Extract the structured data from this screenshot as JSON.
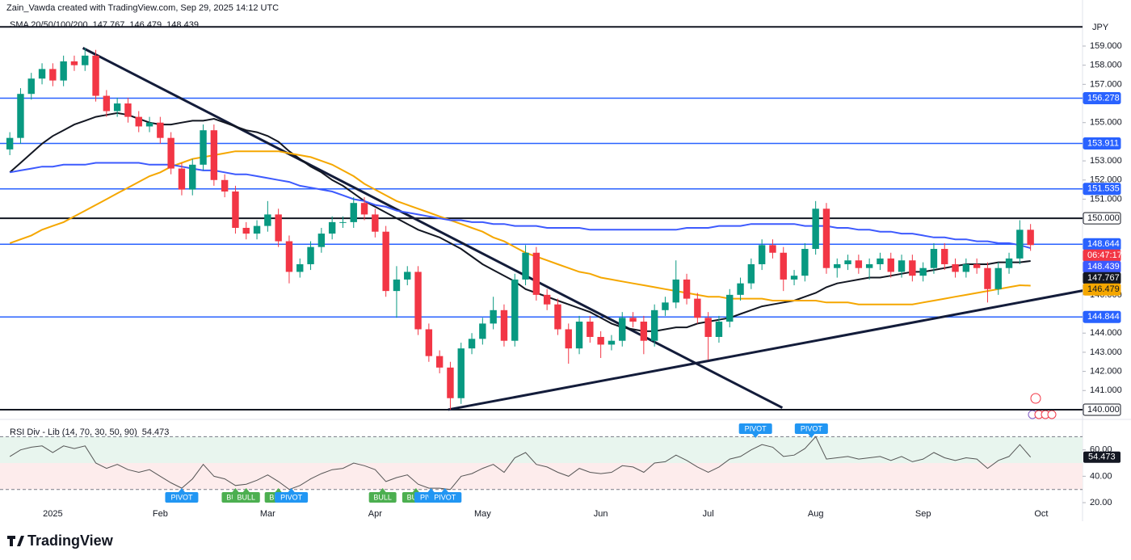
{
  "chart_data": {
    "type": "candlestick",
    "attribution": "Zain_Vawda created with TradingView.com, Sep 29, 2025 14:12 UTC",
    "sma_title": "SMA 20/50/100/200",
    "currency": "JPY",
    "countdown": "06:47:17",
    "brand": "TradingView",
    "up_color": "#089981",
    "down_color": "#f23645",
    "categories": [
      null,
      null,
      null,
      null,
      "2025",
      null,
      null,
      null,
      null,
      null,
      null,
      null,
      null,
      null,
      "Feb",
      null,
      null,
      null,
      null,
      null,
      null,
      null,
      null,
      null,
      "Mar",
      null,
      null,
      null,
      null,
      null,
      null,
      null,
      null,
      null,
      "Apr",
      null,
      null,
      null,
      null,
      null,
      null,
      null,
      null,
      null,
      "May",
      null,
      null,
      null,
      null,
      null,
      null,
      null,
      null,
      null,
      null,
      "Jun",
      null,
      null,
      null,
      null,
      null,
      null,
      null,
      null,
      null,
      "Jul",
      null,
      null,
      null,
      null,
      null,
      null,
      null,
      null,
      null,
      "Aug",
      null,
      null,
      null,
      null,
      null,
      null,
      null,
      null,
      null,
      "Sep",
      null,
      null,
      null,
      null,
      null,
      null,
      null,
      null,
      null,
      null,
      "Oct"
    ],
    "open": [
      153.6,
      154.2,
      156.5,
      157.3,
      157.8,
      157.2,
      158.2,
      158.0,
      158.5,
      156.4,
      155.6,
      156.0,
      155.3,
      154.8,
      155.0,
      154.2,
      152.6,
      151.5,
      152.8,
      154.6,
      152.0,
      151.4,
      149.5,
      149.2,
      149.6,
      150.2,
      148.8,
      147.2,
      147.6,
      148.5,
      149.2,
      149.8,
      149.8,
      150.8,
      150.2,
      149.3,
      146.2,
      146.8,
      147.2,
      144.2,
      142.8,
      142.2,
      140.6,
      143.2,
      143.7,
      144.5,
      145.2,
      143.6,
      146.8,
      148.2,
      146.0,
      145.5,
      144.2,
      143.2,
      144.6,
      143.8,
      143.4,
      143.6,
      144.8,
      144.6,
      143.6,
      145.2,
      145.6,
      146.8,
      145.8,
      144.8,
      143.8,
      144.6,
      146.0,
      146.6,
      147.6,
      148.6,
      148.2,
      146.8,
      147.0,
      148.4,
      150.5,
      147.4,
      147.6,
      147.8,
      147.4,
      147.6,
      147.9,
      147.2,
      147.8,
      147.0,
      147.4,
      148.4,
      147.6,
      147.2,
      147.6,
      147.4,
      146.3,
      147.4,
      147.9,
      149.4,
      null
    ],
    "high": [
      154.5,
      156.8,
      157.6,
      158.1,
      158.1,
      158.5,
      158.5,
      158.9,
      158.8,
      156.7,
      156.3,
      156.3,
      155.6,
      155.3,
      155.3,
      154.5,
      152.9,
      153.1,
      154.9,
      154.9,
      152.3,
      151.7,
      149.8,
      149.9,
      150.9,
      150.5,
      149.1,
      147.9,
      148.8,
      149.5,
      150.1,
      150.1,
      151.1,
      151.1,
      150.5,
      149.6,
      147.5,
      147.5,
      147.5,
      144.5,
      143.1,
      142.5,
      143.5,
      144.0,
      144.8,
      145.9,
      145.5,
      147.1,
      148.6,
      148.5,
      146.3,
      145.8,
      144.5,
      144.9,
      144.9,
      144.1,
      143.9,
      145.1,
      145.1,
      144.9,
      145.5,
      145.9,
      147.8,
      147.1,
      146.1,
      145.1,
      144.9,
      146.3,
      146.9,
      147.9,
      148.9,
      148.9,
      148.5,
      147.3,
      148.7,
      150.9,
      150.8,
      147.9,
      148.1,
      148.1,
      147.9,
      148.2,
      148.2,
      148.1,
      148.1,
      147.7,
      148.7,
      148.7,
      147.9,
      147.9,
      147.9,
      147.7,
      147.7,
      148.2,
      149.9,
      149.7,
      null
    ],
    "low": [
      153.3,
      153.9,
      156.2,
      157.0,
      156.9,
      156.9,
      157.7,
      157.7,
      156.1,
      155.3,
      155.3,
      155.0,
      154.5,
      154.5,
      153.9,
      152.3,
      151.2,
      151.2,
      152.5,
      151.7,
      151.1,
      149.2,
      148.9,
      148.9,
      149.3,
      148.5,
      146.6,
      146.9,
      147.3,
      148.2,
      148.9,
      149.5,
      149.5,
      149.9,
      149.0,
      145.9,
      144.8,
      146.5,
      143.9,
      142.5,
      141.9,
      140.0,
      140.3,
      142.9,
      143.4,
      144.2,
      143.3,
      143.3,
      146.5,
      145.7,
      145.2,
      143.9,
      142.4,
      142.9,
      143.5,
      142.7,
      143.1,
      143.3,
      144.3,
      142.9,
      143.3,
      144.9,
      145.3,
      145.5,
      144.5,
      142.6,
      143.5,
      144.3,
      145.7,
      146.3,
      147.3,
      147.9,
      146.2,
      146.5,
      146.7,
      148.1,
      147.1,
      146.9,
      147.3,
      147.1,
      146.8,
      147.3,
      146.9,
      146.9,
      146.7,
      146.7,
      147.1,
      147.3,
      146.9,
      146.9,
      147.1,
      145.6,
      146.0,
      147.1,
      147.6,
      148.3,
      null
    ],
    "close": [
      154.2,
      156.5,
      157.3,
      157.8,
      157.2,
      158.2,
      158.0,
      158.5,
      156.4,
      155.6,
      156.0,
      155.3,
      154.8,
      155.0,
      154.2,
      152.6,
      151.5,
      152.8,
      154.6,
      152.0,
      151.4,
      149.5,
      149.2,
      149.6,
      150.2,
      148.8,
      147.2,
      147.6,
      148.5,
      149.2,
      149.8,
      149.8,
      150.8,
      150.2,
      149.3,
      146.2,
      146.8,
      147.2,
      144.2,
      142.8,
      142.2,
      140.6,
      143.2,
      143.7,
      144.5,
      145.2,
      143.6,
      146.8,
      148.2,
      146.0,
      145.5,
      144.2,
      143.2,
      144.6,
      143.8,
      143.4,
      143.6,
      144.8,
      144.6,
      143.6,
      145.2,
      145.6,
      146.8,
      145.8,
      144.8,
      143.8,
      144.6,
      146.0,
      146.6,
      147.6,
      148.6,
      148.2,
      146.8,
      147.0,
      148.4,
      150.5,
      147.4,
      147.6,
      147.8,
      147.4,
      147.6,
      147.9,
      147.2,
      147.8,
      147.0,
      147.4,
      148.4,
      147.6,
      147.2,
      147.6,
      147.4,
      146.3,
      147.4,
      147.9,
      149.4,
      148.6,
      null
    ],
    "series": [
      {
        "color": "#131722",
        "box_text": "#ffffff",
        "values": [
          152.4,
          152.9,
          153.4,
          153.9,
          154.3,
          154.6,
          154.9,
          155.1,
          155.3,
          155.4,
          155.5,
          155.4,
          155.2,
          155.0,
          154.9,
          154.9,
          155.0,
          155.1,
          155.1,
          155.2,
          155.0,
          154.8,
          154.6,
          154.5,
          154.3,
          154.0,
          153.5,
          153.1,
          152.7,
          152.4,
          152.0,
          151.7,
          151.3,
          150.9,
          150.6,
          150.3,
          150.0,
          149.7,
          149.4,
          149.2,
          149.0,
          148.7,
          148.4,
          148.0,
          147.6,
          147.3,
          147.0,
          146.7,
          146.3,
          146.1,
          145.9,
          145.7,
          145.5,
          145.3,
          145.1,
          144.8,
          144.5,
          144.3,
          144.2,
          144.1,
          144.1,
          144.2,
          144.3,
          144.3,
          144.5,
          144.6,
          144.7,
          144.8,
          145.0,
          145.2,
          145.4,
          145.5,
          145.6,
          145.7,
          145.9,
          146.1,
          146.4,
          146.6,
          146.7,
          146.8,
          146.9,
          146.9,
          147.0,
          147.1,
          147.2,
          147.2,
          147.3,
          147.4,
          147.5,
          147.6,
          147.6,
          147.6,
          147.7,
          147.7,
          147.7,
          147.767,
          null
        ]
      },
      {
        "color": "#f5a700",
        "box_text": "#131722",
        "values": [
          148.7,
          148.9,
          149.1,
          149.4,
          149.6,
          149.8,
          150.1,
          150.4,
          150.7,
          151.0,
          151.3,
          151.6,
          151.9,
          152.2,
          152.4,
          152.7,
          152.9,
          153.1,
          153.2,
          153.3,
          153.4,
          153.5,
          153.5,
          153.5,
          153.5,
          153.5,
          153.4,
          153.3,
          153.2,
          153.0,
          152.8,
          152.5,
          152.2,
          151.8,
          151.5,
          151.2,
          150.9,
          150.7,
          150.5,
          150.3,
          150.1,
          149.9,
          149.7,
          149.5,
          149.3,
          149.0,
          148.8,
          148.5,
          148.2,
          148.0,
          147.8,
          147.6,
          147.4,
          147.2,
          147.1,
          146.9,
          146.8,
          146.7,
          146.6,
          146.5,
          146.4,
          146.3,
          146.2,
          146.1,
          146.0,
          145.9,
          145.9,
          145.8,
          145.8,
          145.8,
          145.8,
          145.7,
          145.7,
          145.7,
          145.7,
          145.7,
          145.6,
          145.6,
          145.6,
          145.5,
          145.5,
          145.5,
          145.5,
          145.5,
          145.5,
          145.6,
          145.7,
          145.8,
          145.9,
          146.0,
          146.1,
          146.2,
          146.3,
          146.4,
          146.5,
          146.479,
          null
        ]
      },
      {
        "color": "#3d5afe",
        "box_text": "#ffffff",
        "values": [
          152.4,
          152.5,
          152.6,
          152.7,
          152.7,
          152.8,
          152.8,
          152.8,
          152.9,
          152.9,
          152.9,
          152.9,
          152.9,
          152.8,
          152.8,
          152.8,
          152.7,
          152.6,
          152.5,
          152.5,
          152.4,
          152.3,
          152.3,
          152.2,
          152.1,
          152.0,
          151.9,
          151.7,
          151.6,
          151.5,
          151.4,
          151.2,
          151.0,
          150.9,
          150.7,
          150.6,
          150.4,
          150.3,
          150.2,
          150.1,
          150.0,
          149.9,
          149.9,
          149.8,
          149.8,
          149.7,
          149.7,
          149.6,
          149.6,
          149.6,
          149.5,
          149.5,
          149.5,
          149.5,
          149.4,
          149.4,
          149.4,
          149.4,
          149.4,
          149.4,
          149.4,
          149.4,
          149.4,
          149.5,
          149.5,
          149.5,
          149.6,
          149.6,
          149.6,
          149.7,
          149.7,
          149.7,
          149.7,
          149.7,
          149.6,
          149.6,
          149.6,
          149.5,
          149.5,
          149.4,
          149.4,
          149.3,
          149.3,
          149.2,
          149.2,
          149.1,
          149.0,
          149.0,
          148.9,
          148.9,
          148.8,
          148.8,
          148.7,
          148.7,
          148.6,
          148.439,
          null
        ]
      }
    ],
    "ylim": [
      139.5,
      160.6
    ],
    "yticks": [
      {
        "value": 159,
        "label": "159.000"
      },
      {
        "value": 158,
        "label": "158.000"
      },
      {
        "value": 157,
        "label": "157.000"
      },
      {
        "value": 155,
        "label": "155.000"
      },
      {
        "value": 153,
        "label": "153.000"
      },
      {
        "value": 152,
        "label": "152.000"
      },
      {
        "value": 151,
        "label": "151.000"
      },
      {
        "value": 146,
        "label": "146.000"
      },
      {
        "value": 144,
        "label": "144.000"
      },
      {
        "value": 143,
        "label": "143.000"
      },
      {
        "value": 142,
        "label": "142.000"
      },
      {
        "value": 141,
        "label": "141.000"
      }
    ],
    "levels": [
      {
        "value": 160,
        "color": "#131722",
        "width": 2,
        "show_label": false
      },
      {
        "value": 156.278,
        "color": "#2962ff",
        "width": 1.5,
        "show_label": true
      },
      {
        "value": 153.911,
        "color": "#2962ff",
        "width": 1.5,
        "show_label": true
      },
      {
        "value": 151.535,
        "color": "#2962ff",
        "width": 1.5,
        "show_label": true
      },
      {
        "value": 150,
        "label": "150.000",
        "color": "#131722",
        "width": 2,
        "show_label": true
      },
      {
        "value": 148.644,
        "color": "#2962ff",
        "width": 1.5,
        "show_label": true
      },
      {
        "value": 144.844,
        "color": "#2962ff",
        "width": 1.5,
        "show_label": true
      },
      {
        "value": 140,
        "label": "140.000",
        "color": "#131722",
        "width": 2,
        "show_label": true
      }
    ],
    "trendlines": [
      {
        "from": [
          6.8,
          158.9
        ],
        "to": [
          71.9,
          140.1
        ],
        "color": "#131c3a"
      },
      {
        "from": [
          40.8,
          140.0
        ],
        "to": [
          104.4,
          146.7
        ],
        "color": "#131c3a"
      }
    ],
    "rsi": {
      "title": "RSI Div - Lib (14, 70, 30, 50, 90)",
      "color": "#555555",
      "values": [
        55,
        60,
        62,
        63,
        58,
        63,
        61,
        63,
        50,
        46,
        49,
        45,
        43,
        45,
        40,
        35,
        31,
        38,
        49,
        40,
        38,
        33,
        34,
        37,
        41,
        36,
        30,
        33,
        38,
        42,
        45,
        46,
        50,
        48,
        45,
        36,
        39,
        41,
        34,
        31,
        31,
        30,
        40,
        42,
        46,
        49,
        43,
        54,
        58,
        49,
        47,
        43,
        40,
        46,
        43,
        42,
        43,
        48,
        47,
        43,
        50,
        51,
        56,
        52,
        47,
        43,
        47,
        53,
        55,
        60,
        64,
        62,
        55,
        56,
        61,
        70,
        53,
        54,
        55,
        53,
        54,
        55,
        52,
        55,
        51,
        53,
        58,
        54,
        52,
        54,
        53,
        46,
        52,
        55,
        64,
        54.473,
        null
      ],
      "ylim": [
        18,
        84
      ],
      "yticks": [
        {
          "value": 60,
          "label": "60.00"
        },
        {
          "value": 40,
          "label": "40.00"
        },
        {
          "value": 20,
          "label": "20.00"
        }
      ],
      "levels": [
        70,
        30
      ],
      "mid": 50,
      "annotations": [
        {
          "text": "PIVOT",
          "index": 16,
          "side": "bottom",
          "color": "#2196f3"
        },
        {
          "text": "BULL",
          "index": 21,
          "side": "bottom",
          "color": "#4caf50"
        },
        {
          "text": "BULL",
          "index": 22,
          "side": "bottom",
          "color": "#4caf50"
        },
        {
          "text": "BULL",
          "index": 25,
          "side": "bottom",
          "color": "#4caf50"
        },
        {
          "text": "PIVOT",
          "index": 26.2,
          "side": "bottom",
          "color": "#2196f3"
        },
        {
          "text": "BULL",
          "index": 34.7,
          "side": "bottom",
          "color": "#4caf50"
        },
        {
          "text": "BULL",
          "index": 37.8,
          "side": "bottom",
          "color": "#4caf50"
        },
        {
          "text": "PIVOT",
          "index": 39.2,
          "side": "bottom",
          "color": "#2196f3"
        },
        {
          "text": "PIVOT",
          "index": 40.5,
          "side": "bottom",
          "color": "#2196f3"
        },
        {
          "text": "PIVOT",
          "index": 69.4,
          "side": "top",
          "color": "#2196f3"
        },
        {
          "text": "PIVOT",
          "index": 74.6,
          "side": "top",
          "color": "#2196f3"
        }
      ]
    }
  }
}
